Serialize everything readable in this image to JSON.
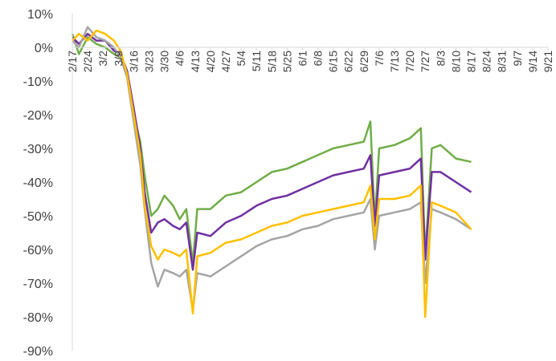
{
  "chart_data": {
    "type": "line",
    "title": "",
    "xlabel": "",
    "ylabel": "",
    "ylim": [
      -90,
      10
    ],
    "yticks": [
      10,
      0,
      -10,
      -20,
      -30,
      -40,
      -50,
      -60,
      -70,
      -80,
      -90
    ],
    "ytick_labels": [
      "10%",
      "0%",
      "-10%",
      "-20%",
      "-30%",
      "-40%",
      "-50%",
      "-60%",
      "-70%",
      "-80%",
      "-90%"
    ],
    "xlim": [
      "2/17",
      "9/21"
    ],
    "xtick_labels": [
      "2/17",
      "2/24",
      "3/2",
      "3/9",
      "3/16",
      "3/23",
      "3/30",
      "4/6",
      "4/13",
      "4/20",
      "4/27",
      "5/4",
      "5/11",
      "5/18",
      "5/25",
      "6/1",
      "6/8",
      "6/15",
      "6/22",
      "6/29",
      "7/6",
      "7/13",
      "7/20",
      "7/27",
      "8/3",
      "8/10",
      "8/17",
      "8/24",
      "8/31",
      "9/7",
      "9/14",
      "9/21"
    ],
    "grid": false,
    "legend": "none",
    "series": [
      {
        "color": "#70AD47",
        "points": [
          [
            "2/17",
            4
          ],
          [
            "2/20",
            -2
          ],
          [
            "2/24",
            3
          ],
          [
            "2/28",
            1
          ],
          [
            "3/3",
            0
          ],
          [
            "3/7",
            -2
          ],
          [
            "3/10",
            -3
          ],
          [
            "3/13",
            -8
          ],
          [
            "3/16",
            -20
          ],
          [
            "3/19",
            -28
          ],
          [
            "3/21",
            -38
          ],
          [
            "3/24",
            -50
          ],
          [
            "3/27",
            -48
          ],
          [
            "3/30",
            -44
          ],
          [
            "4/3",
            -47
          ],
          [
            "4/6",
            -51
          ],
          [
            "4/9",
            -48
          ],
          [
            "4/12",
            -64
          ],
          [
            "4/14",
            -48
          ],
          [
            "4/20",
            -48
          ],
          [
            "4/27",
            -44
          ],
          [
            "5/4",
            -43
          ],
          [
            "5/11",
            -40
          ],
          [
            "5/18",
            -37
          ],
          [
            "5/25",
            -36
          ],
          [
            "6/1",
            -34
          ],
          [
            "6/8",
            -32
          ],
          [
            "6/15",
            -30
          ],
          [
            "6/22",
            -29
          ],
          [
            "6/29",
            -28
          ],
          [
            "7/2",
            -22
          ],
          [
            "7/4",
            -52
          ],
          [
            "7/6",
            -30
          ],
          [
            "7/13",
            -29
          ],
          [
            "7/20",
            -27
          ],
          [
            "7/25",
            -24
          ],
          [
            "7/27",
            -62
          ],
          [
            "7/30",
            -30
          ],
          [
            "8/3",
            -29
          ],
          [
            "8/10",
            -33
          ],
          [
            "8/17",
            -34
          ]
        ]
      },
      {
        "color": "#7030A0",
        "points": [
          [
            "2/17",
            3
          ],
          [
            "2/20",
            1
          ],
          [
            "2/24",
            4
          ],
          [
            "2/28",
            2
          ],
          [
            "3/3",
            2
          ],
          [
            "3/7",
            -1
          ],
          [
            "3/10",
            -2
          ],
          [
            "3/13",
            -7
          ],
          [
            "3/16",
            -18
          ],
          [
            "3/19",
            -30
          ],
          [
            "3/21",
            -43
          ],
          [
            "3/24",
            -55
          ],
          [
            "3/27",
            -52
          ],
          [
            "3/30",
            -51
          ],
          [
            "4/3",
            -53
          ],
          [
            "4/6",
            -54
          ],
          [
            "4/9",
            -52
          ],
          [
            "4/12",
            -66
          ],
          [
            "4/14",
            -55
          ],
          [
            "4/20",
            -56
          ],
          [
            "4/27",
            -52
          ],
          [
            "5/4",
            -50
          ],
          [
            "5/11",
            -47
          ],
          [
            "5/18",
            -45
          ],
          [
            "5/25",
            -44
          ],
          [
            "6/1",
            -42
          ],
          [
            "6/8",
            -40
          ],
          [
            "6/15",
            -38
          ],
          [
            "6/22",
            -37
          ],
          [
            "6/29",
            -36
          ],
          [
            "7/2",
            -32
          ],
          [
            "7/4",
            -53
          ],
          [
            "7/6",
            -38
          ],
          [
            "7/13",
            -37
          ],
          [
            "7/20",
            -36
          ],
          [
            "7/25",
            -33
          ],
          [
            "7/27",
            -63
          ],
          [
            "7/30",
            -37
          ],
          [
            "8/3",
            -37
          ],
          [
            "8/10",
            -40
          ],
          [
            "8/17",
            -43
          ]
        ]
      },
      {
        "color": "#A5A5A5",
        "points": [
          [
            "2/17",
            2
          ],
          [
            "2/20",
            0
          ],
          [
            "2/24",
            6
          ],
          [
            "2/28",
            3
          ],
          [
            "3/3",
            2
          ],
          [
            "3/7",
            0
          ],
          [
            "3/10",
            -3
          ],
          [
            "3/13",
            -9
          ],
          [
            "3/16",
            -22
          ],
          [
            "3/19",
            -35
          ],
          [
            "3/21",
            -48
          ],
          [
            "3/24",
            -64
          ],
          [
            "3/27",
            -71
          ],
          [
            "3/30",
            -66
          ],
          [
            "4/3",
            -67
          ],
          [
            "4/6",
            -68
          ],
          [
            "4/9",
            -66
          ],
          [
            "4/12",
            -78
          ],
          [
            "4/14",
            -67
          ],
          [
            "4/20",
            -68
          ],
          [
            "4/27",
            -65
          ],
          [
            "5/4",
            -62
          ],
          [
            "5/11",
            -59
          ],
          [
            "5/18",
            -57
          ],
          [
            "5/25",
            -56
          ],
          [
            "6/1",
            -54
          ],
          [
            "6/8",
            -53
          ],
          [
            "6/15",
            -51
          ],
          [
            "6/22",
            -50
          ],
          [
            "6/29",
            -49
          ],
          [
            "7/2",
            -45
          ],
          [
            "7/4",
            -60
          ],
          [
            "7/6",
            -50
          ],
          [
            "7/13",
            -49
          ],
          [
            "7/20",
            -48
          ],
          [
            "7/25",
            -46
          ],
          [
            "7/27",
            -70
          ],
          [
            "7/30",
            -48
          ],
          [
            "8/3",
            -49
          ],
          [
            "8/10",
            -51
          ],
          [
            "8/17",
            -54
          ]
        ]
      },
      {
        "color": "#FFC000",
        "points": [
          [
            "2/17",
            2
          ],
          [
            "2/20",
            4
          ],
          [
            "2/24",
            2
          ],
          [
            "2/28",
            5
          ],
          [
            "3/3",
            4
          ],
          [
            "3/7",
            2
          ],
          [
            "3/10",
            -1
          ],
          [
            "3/13",
            -8
          ],
          [
            "3/16",
            -20
          ],
          [
            "3/19",
            -32
          ],
          [
            "3/21",
            -47
          ],
          [
            "3/24",
            -59
          ],
          [
            "3/27",
            -63
          ],
          [
            "3/30",
            -60
          ],
          [
            "4/3",
            -61
          ],
          [
            "4/6",
            -62
          ],
          [
            "4/9",
            -60
          ],
          [
            "4/12",
            -79
          ],
          [
            "4/14",
            -62
          ],
          [
            "4/20",
            -61
          ],
          [
            "4/27",
            -58
          ],
          [
            "5/4",
            -57
          ],
          [
            "5/11",
            -55
          ],
          [
            "5/18",
            -53
          ],
          [
            "5/25",
            -52
          ],
          [
            "6/1",
            -50
          ],
          [
            "6/8",
            -49
          ],
          [
            "6/15",
            -48
          ],
          [
            "6/22",
            -47
          ],
          [
            "6/29",
            -46
          ],
          [
            "7/2",
            -41
          ],
          [
            "7/4",
            -57
          ],
          [
            "7/6",
            -45
          ],
          [
            "7/13",
            -45
          ],
          [
            "7/20",
            -44
          ],
          [
            "7/25",
            -41
          ],
          [
            "7/27",
            -80
          ],
          [
            "7/30",
            -46
          ],
          [
            "8/3",
            -47
          ],
          [
            "8/10",
            -49
          ],
          [
            "8/17",
            -54
          ]
        ]
      }
    ]
  }
}
